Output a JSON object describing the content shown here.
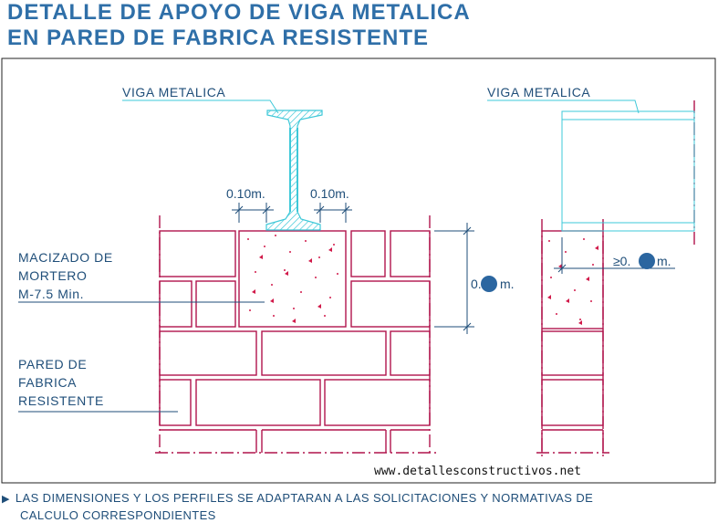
{
  "title": {
    "line1": "DETALLE DE  APOYO DE VIGA METALICA",
    "line2": "EN PARED DE FABRICA RESISTENTE"
  },
  "labels": {
    "viga_left": "VIGA METALICA",
    "viga_right": "VIGA METALICA",
    "macizado_1": "MACIZADO DE",
    "macizado_2": "MORTERO",
    "macizado_3": "M-7.5 Min.",
    "pared_1": "PARED DE",
    "pared_2": "FABRICA",
    "pared_3": "RESISTENTE"
  },
  "dimensions": {
    "left_offset": "0.10m.",
    "right_offset": "0.10m.",
    "height_prefix": "0.",
    "height_suffix": "m.",
    "support_prefix": "≥0.",
    "support_suffix": "m."
  },
  "website": "www.detallesconstructivos.net",
  "note": {
    "line1": "LAS DIMENSIONES Y LOS PERFILES SE ADAPTARAN A LAS SOLICITACIONES Y NORMATIVAS DE",
    "line2": "CALCULO CORRESPONDIENTES"
  },
  "colors": {
    "title": "#2f6fa8",
    "masonry": "#b0144c",
    "steel": "#3ec8d8",
    "text": "#1f4e79"
  }
}
